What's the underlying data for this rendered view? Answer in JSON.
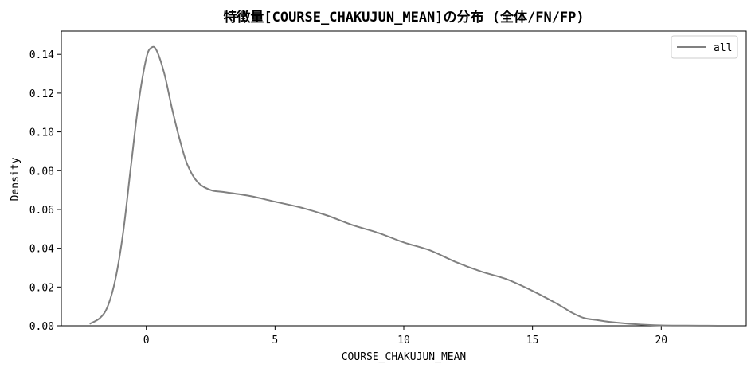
{
  "chart_data": {
    "type": "line",
    "title": "特徴量[COURSE_CHAKUJUN_MEAN]の分布 (全体/FN/FP)",
    "xlabel": "COURSE_CHAKUJUN_MEAN",
    "ylabel": "Density",
    "xlim": [
      -3.3,
      23.3
    ],
    "ylim": [
      0,
      0.152
    ],
    "xticks": [
      0,
      5,
      10,
      15,
      20
    ],
    "yticks": [
      0.0,
      0.02,
      0.04,
      0.06,
      0.08,
      0.1,
      0.12,
      0.14
    ],
    "xtick_labels": [
      "0",
      "5",
      "10",
      "15",
      "20"
    ],
    "ytick_labels": [
      "0.00",
      "0.02",
      "0.04",
      "0.06",
      "0.08",
      "0.10",
      "0.12",
      "0.14"
    ],
    "grid": false,
    "legend_position": "top-right",
    "series": [
      {
        "name": "all",
        "color": "#808080",
        "x": [
          -2.2,
          -1.8,
          -1.5,
          -1.2,
          -0.9,
          -0.6,
          -0.3,
          0.0,
          0.2,
          0.4,
          0.7,
          1.0,
          1.3,
          1.6,
          2.0,
          2.5,
          3.0,
          4.0,
          5.0,
          6.0,
          7.0,
          8.0,
          9.0,
          10.0,
          11.0,
          12.0,
          13.0,
          14.0,
          15.0,
          16.0,
          16.5,
          17.0,
          17.5,
          18.0,
          19.0,
          20.0,
          21.0,
          22.2
        ],
        "y": [
          0.001,
          0.004,
          0.01,
          0.024,
          0.048,
          0.082,
          0.115,
          0.138,
          0.1435,
          0.142,
          0.13,
          0.112,
          0.096,
          0.083,
          0.074,
          0.07,
          0.069,
          0.067,
          0.064,
          0.061,
          0.057,
          0.052,
          0.048,
          0.043,
          0.039,
          0.033,
          0.028,
          0.024,
          0.018,
          0.011,
          0.007,
          0.004,
          0.003,
          0.002,
          0.0008,
          0.0002,
          0.0001,
          0.0
        ]
      }
    ]
  }
}
